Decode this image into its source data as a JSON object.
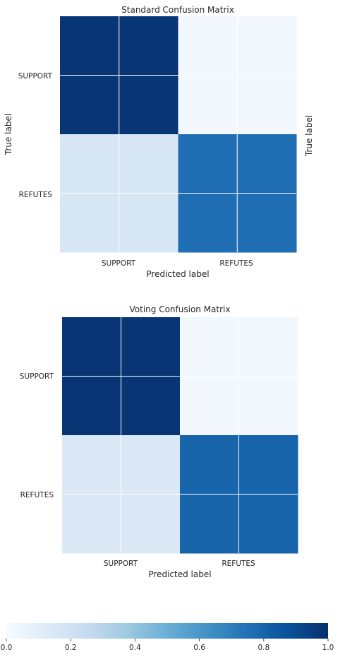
{
  "chart_data": [
    {
      "type": "heatmap",
      "title": "Standard Confusion Matrix",
      "xlabel": "Predicted label",
      "ylabel": "True label",
      "ylabel_right": "True label",
      "x_categories": [
        "SUPPORT",
        "REFUTES"
      ],
      "y_categories": [
        "SUPPORT",
        "REFUTES"
      ],
      "values": [
        [
          0.98,
          0.02
        ],
        [
          0.16,
          0.76
        ]
      ],
      "grid": true
    },
    {
      "type": "heatmap",
      "title": "Voting Confusion Matrix",
      "xlabel": "Predicted label",
      "ylabel": "",
      "x_categories": [
        "SUPPORT",
        "REFUTES"
      ],
      "y_categories": [
        "SUPPORT",
        "REFUTES"
      ],
      "values": [
        [
          0.98,
          0.02
        ],
        [
          0.14,
          0.8
        ]
      ],
      "grid": true
    }
  ],
  "colorbar": {
    "colormap": "Blues",
    "range": [
      0,
      1
    ],
    "ticks": [
      "0.0",
      "0.2",
      "0.4",
      "0.6",
      "0.8",
      "1.0"
    ],
    "tick_values": [
      0,
      0.2,
      0.4,
      0.6,
      0.8,
      1.0
    ],
    "orientation": "horizontal"
  },
  "colors": {
    "low": "#f7fbff",
    "high": "#08306b",
    "text": "#262626",
    "grid": "#ffffff"
  }
}
